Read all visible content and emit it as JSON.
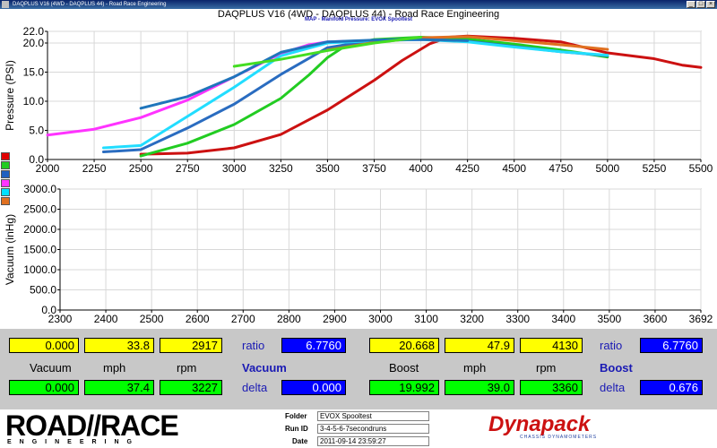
{
  "window": {
    "title": "DAQPLUS V16 (4WD - DAQPLUS 44) - Road Race Engineering"
  },
  "legend": {
    "swatches": [
      "#e00000",
      "#22cc22",
      "#2060c0",
      "#ff33ff",
      "#00e0ff",
      "#e07020"
    ]
  },
  "chart_data": [
    {
      "type": "line",
      "title": "DAQPLUS V16 (4WD - DAQPLUS 44) - Road Race Engineering",
      "subtitle": "MAP - Manifold Pressure: EVOX Spooltest",
      "xlabel": "",
      "ylabel": "Pressure (PSI)",
      "xlim": [
        2000,
        5500
      ],
      "ylim": [
        0,
        22.0
      ],
      "x_ticks": [
        "2000",
        "2250",
        "2500",
        "2750",
        "3000",
        "3250",
        "3500",
        "3750",
        "4000",
        "4250",
        "4500",
        "4750",
        "5000",
        "5250",
        "5500"
      ],
      "y_ticks": [
        {
          "v": 0,
          "t": "0.0"
        },
        {
          "v": 5,
          "t": "5.0"
        },
        {
          "v": 10,
          "t": "10.0"
        },
        {
          "v": 15,
          "t": "15.0"
        },
        {
          "v": 20,
          "t": "20.0"
        },
        {
          "v": 22,
          "t": "22.0"
        }
      ],
      "grid": true,
      "series": [
        {
          "color": "#cc1111",
          "x": [
            2500,
            2750,
            3000,
            3250,
            3500,
            3750,
            3900,
            4050,
            4150,
            4250,
            4500,
            4750,
            5000,
            5250,
            5400,
            5500
          ],
          "y": [
            0.9,
            1.1,
            2.0,
            4.3,
            8.5,
            13.6,
            17.0,
            19.9,
            21.0,
            21.2,
            20.8,
            20.2,
            18.3,
            17.3,
            16.2,
            15.8
          ]
        },
        {
          "color": "#22cc22",
          "x": [
            2500,
            2750,
            3000,
            3250,
            3400,
            3500,
            3600,
            3750,
            4000,
            4250,
            4500,
            4750,
            5000
          ],
          "y": [
            0.6,
            2.8,
            6.0,
            10.5,
            14.5,
            17.5,
            19.6,
            20.6,
            21.0,
            20.7,
            19.8,
            18.8,
            17.6
          ]
        },
        {
          "color": "#2a6cc0",
          "x": [
            2300,
            2500,
            2750,
            3000,
            3250,
            3500,
            3750,
            4000,
            4250,
            4500,
            4750,
            5000
          ],
          "y": [
            1.3,
            1.7,
            5.4,
            9.5,
            14.6,
            19.2,
            20.5,
            20.7,
            20.3,
            19.4,
            18.5,
            17.8
          ]
        },
        {
          "color": "#ff33ff",
          "x": [
            2000,
            2250,
            2500,
            2750,
            3000,
            3250,
            3400,
            3500,
            3750,
            4000,
            4250
          ],
          "y": [
            4.2,
            5.2,
            7.2,
            10.2,
            14.2,
            18.2,
            19.7,
            20.2,
            20.4,
            20.6,
            20.3
          ]
        },
        {
          "color": "#22ddff",
          "x": [
            2300,
            2500,
            2750,
            3000,
            3250,
            3500,
            3750,
            4000,
            4250,
            4500,
            4750,
            5000
          ],
          "y": [
            2.0,
            2.4,
            7.4,
            12.4,
            17.8,
            20.0,
            20.4,
            20.6,
            20.2,
            19.3,
            18.5,
            17.9
          ]
        },
        {
          "color": "#e07020",
          "x": [
            3500,
            3750,
            4000,
            4250,
            4500,
            4750,
            5000
          ],
          "y": [
            18.8,
            20.1,
            20.9,
            21.1,
            20.4,
            19.7,
            18.9
          ]
        },
        {
          "color": "#1f75bb",
          "x": [
            2500,
            2750,
            3000,
            3250,
            3500,
            3750,
            4000,
            4250
          ],
          "y": [
            8.8,
            10.8,
            14.2,
            18.4,
            20.2,
            20.5,
            20.6,
            20.4
          ]
        },
        {
          "color": "#44dd22",
          "x": [
            3000,
            3250,
            3500,
            3750,
            4000
          ],
          "y": [
            16.0,
            17.2,
            18.7,
            20.0,
            21.0
          ]
        }
      ]
    },
    {
      "type": "line",
      "xlabel": "",
      "ylabel": "Vacuum (inHg)",
      "xlim": [
        2300,
        3692
      ],
      "ylim": [
        0,
        3000.0
      ],
      "x_ticks": [
        "2300",
        "2400",
        "2500",
        "2600",
        "2700",
        "2800",
        "2900",
        "3000",
        "3100",
        "3200",
        "3300",
        "3400",
        "3500",
        "3600",
        "3692"
      ],
      "y_ticks": [
        {
          "v": 0,
          "t": "0.0"
        },
        {
          "v": 500,
          "t": "500.0"
        },
        {
          "v": 1000,
          "t": "1000.0"
        },
        {
          "v": 1500,
          "t": "1500.0"
        },
        {
          "v": 2000,
          "t": "2000.0"
        },
        {
          "v": 2500,
          "t": "2500.0"
        },
        {
          "v": 3000,
          "t": "3000.0"
        }
      ],
      "grid": true,
      "series": []
    }
  ],
  "panel": {
    "row1": {
      "vacuum": "0.000",
      "mph_left": "33.8",
      "rpm_left": "2917",
      "ratio_label_left": "ratio",
      "ratio_left": "6.7760",
      "boost": "20.668",
      "mph_right": "47.9",
      "rpm_right": "4130",
      "ratio_label_right": "ratio",
      "ratio_right": "6.7760"
    },
    "labels": {
      "vacuum": "Vacuum",
      "mph_left": "mph",
      "rpm_left": "rpm",
      "vacuum_blue": "Vacuum",
      "boost": "Boost",
      "mph_right": "mph",
      "rpm_right": "rpm",
      "boost_blue": "Boost"
    },
    "row2": {
      "vacuum": "0.000",
      "mph_left": "37.4",
      "rpm_left": "3227",
      "delta_label_left": "delta",
      "delta_left": "0.000",
      "boost": "19.992",
      "mph_right": "39.0",
      "rpm_right": "3360",
      "delta_label_right": "delta",
      "delta_right": "0.676"
    }
  },
  "footer": {
    "logo_main": "ROAD//RACE",
    "logo_sub": "ENGINEERING",
    "folder_label": "Folder",
    "folder_value": "EVOX Spooltest",
    "runid_label": "Run ID",
    "runid_value": "3-4-5-6-7secondruns",
    "date_label": "Date",
    "date_value": "2011-09-14 23:59:27",
    "brand": "Dynapack",
    "brand_sub": "CHASSIS DYNAMOMETERS"
  }
}
